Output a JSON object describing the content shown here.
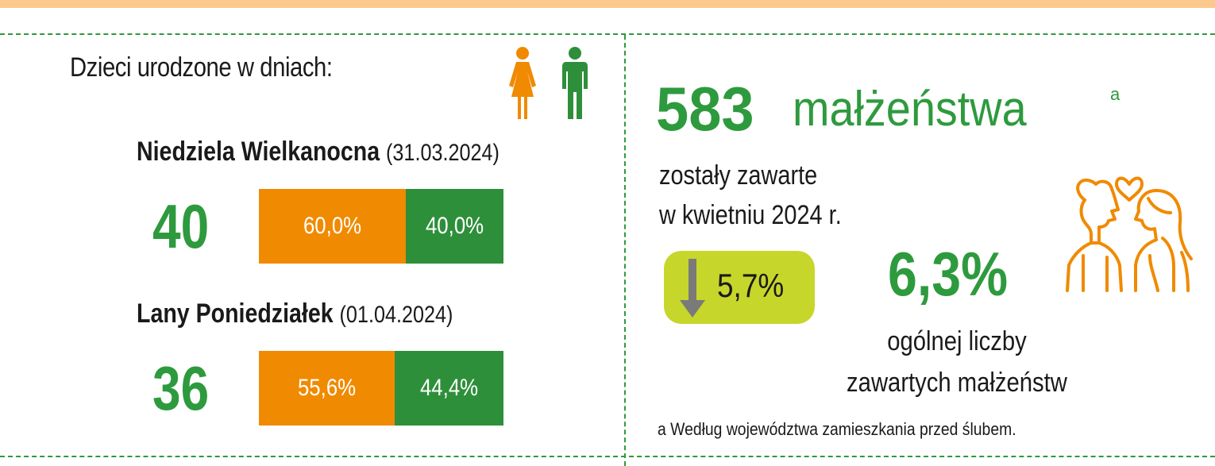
{
  "colors": {
    "female": "#f08a00",
    "male": "#2e8f3a",
    "accent_green": "#2e9a3e",
    "pill": "#c7d62a",
    "top_band": "#fbc98c"
  },
  "births": {
    "title": "Dzieci urodzone w dniach:",
    "legend_icons": [
      "female-icon",
      "male-icon"
    ],
    "days": [
      {
        "name": "Niedziela Wielkanocna",
        "date": "(31.03.2024)",
        "count": "40",
        "female_share": 0.6,
        "male_share": 0.4,
        "female_label": "60,0%",
        "male_label": "40,0%"
      },
      {
        "name": "Lany Poniedziałek",
        "date": "(01.04.2024)",
        "count": "36",
        "female_share": 0.556,
        "male_share": 0.444,
        "female_label": "55,6%",
        "male_label": "44,4%"
      }
    ]
  },
  "marriages": {
    "count": "583",
    "label": "małżeństwa",
    "footnote_mark": "a",
    "desc_line1": "zostały zawarte",
    "desc_line2": "w kwietniu 2024 r.",
    "change": {
      "direction": "down",
      "value": "5,7%",
      "icon": "arrow-down-icon"
    },
    "share": {
      "value": "6,3%",
      "line1": "ogólnej liczby",
      "line2": "zawartych małżeństw"
    },
    "couple_icon": "couple-icon",
    "footnote": "a Według województwa zamieszkania przed ślubem."
  }
}
